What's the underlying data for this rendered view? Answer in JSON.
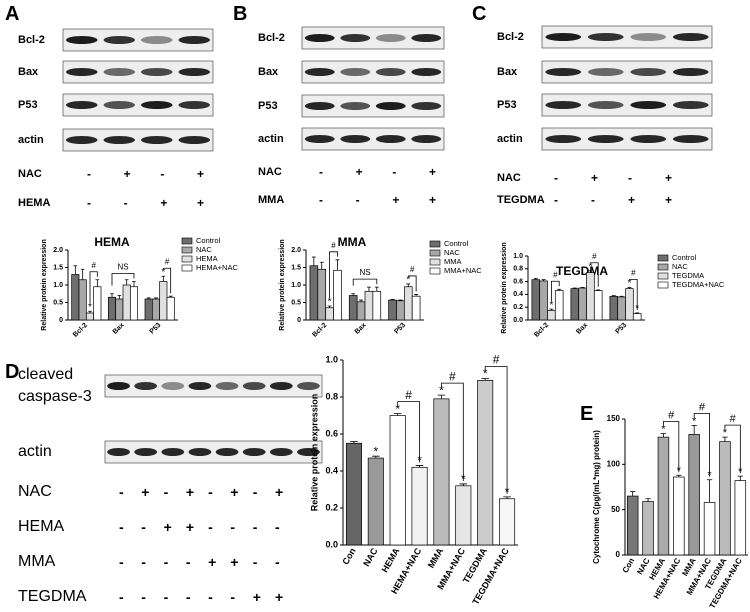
{
  "blots": [
    {
      "panel": "A",
      "bands": [
        "Bcl-2",
        "Bax",
        "P53",
        "actin"
      ],
      "treatments": [
        {
          "name": "NAC",
          "signs": [
            "-",
            "+",
            "-",
            "+"
          ]
        },
        {
          "name": "HEMA",
          "signs": [
            "-",
            "-",
            "+",
            "+"
          ]
        }
      ]
    },
    {
      "panel": "B",
      "bands": [
        "Bcl-2",
        "Bax",
        "P53",
        "actin"
      ],
      "treatments": [
        {
          "name": "NAC",
          "signs": [
            "-",
            "+",
            "-",
            "+"
          ]
        },
        {
          "name": "MMA",
          "signs": [
            "-",
            "-",
            "+",
            "+"
          ]
        }
      ]
    },
    {
      "panel": "C",
      "bands": [
        "Bcl-2",
        "Bax",
        "P53",
        "actin"
      ],
      "treatments": [
        {
          "name": "NAC",
          "signs": [
            "-",
            "+",
            "-",
            "+"
          ]
        },
        {
          "name": "TEGDMA",
          "signs": [
            "-",
            "-",
            "+",
            "+"
          ]
        }
      ]
    },
    {
      "panel": "D",
      "bands": [
        "cleaved caspase-3",
        "actin"
      ],
      "treatments": [
        {
          "name": "NAC",
          "signs": [
            "-",
            "+",
            "-",
            "+",
            "-",
            "+",
            "-",
            "+"
          ]
        },
        {
          "name": "HEMA",
          "signs": [
            "-",
            "-",
            "+",
            "+",
            "-",
            "-",
            "-",
            "-"
          ]
        },
        {
          "name": "MMA",
          "signs": [
            "-",
            "-",
            "-",
            "-",
            "+",
            "+",
            "-",
            "-"
          ]
        },
        {
          "name": "TEGDMA",
          "signs": [
            "-",
            "-",
            "-",
            "-",
            "-",
            "-",
            "+",
            "+"
          ]
        }
      ]
    },
    {
      "panel": "E"
    }
  ],
  "chart_data": [
    {
      "type": "grouped_bar",
      "title": "HEMA",
      "y_label": "Relative protein expression",
      "categories": [
        "Bcl-2",
        "Bax",
        "P53"
      ],
      "legend": "right",
      "series": [
        {
          "name": "Control",
          "color": "#6e6e6e",
          "values": [
            1.3,
            0.65,
            0.6
          ],
          "errors": [
            0.25,
            0.1,
            0.03
          ]
        },
        {
          "name": "NAC",
          "color": "#a8a8a8",
          "values": [
            1.15,
            0.6,
            0.6
          ],
          "errors": [
            0.3,
            0.1,
            0.03
          ]
        },
        {
          "name": "HEMA",
          "color": "#e0e0e0",
          "values": [
            0.2,
            1.0,
            1.1
          ],
          "errors": [
            0.05,
            0.15,
            0.15
          ],
          "markers": [
            "*",
            null,
            "*"
          ]
        },
        {
          "name": "HEMA+NAC",
          "color": "#ffffff",
          "values": [
            0.95,
            0.95,
            0.65
          ],
          "errors": [
            0.2,
            0.15,
            0.03
          ]
        }
      ],
      "ylim": [
        0,
        2
      ],
      "yticks": [
        0,
        0.5,
        {
          "value": 1,
          "label": "1.0"
        },
        1.5,
        {
          "value": 2,
          "label": "2.0"
        }
      ],
      "annotations": [
        {
          "text": "#",
          "category": "Bcl-2",
          "between": [
            "HEMA",
            "HEMA+NAC"
          ]
        },
        {
          "text": "NS",
          "category": "Bax",
          "between": [
            "Control",
            "HEMA+NAC"
          ]
        },
        {
          "text": "#",
          "category": "P53",
          "between": [
            "HEMA",
            "HEMA+NAC"
          ]
        }
      ]
    },
    {
      "type": "grouped_bar",
      "title": "MMA",
      "y_label": "Relative protein expression",
      "categories": [
        "Bcl-2",
        "Bax",
        "P53"
      ],
      "legend": "right",
      "series": [
        {
          "name": "Control",
          "color": "#6e6e6e",
          "values": [
            1.55,
            0.7,
            0.57
          ],
          "errors": [
            0.25,
            0.05,
            0.02
          ]
        },
        {
          "name": "NAC",
          "color": "#a8a8a8",
          "values": [
            1.45,
            0.52,
            0.55
          ],
          "errors": [
            0.2,
            0.05,
            0.02
          ]
        },
        {
          "name": "MMA",
          "color": "#e0e0e0",
          "values": [
            0.35,
            0.82,
            0.95
          ],
          "errors": [
            0.05,
            0.12,
            0.08
          ],
          "markers": [
            "*",
            null,
            "*"
          ]
        },
        {
          "name": "MMA+NAC",
          "color": "#ffffff",
          "values": [
            1.42,
            0.82,
            0.68
          ],
          "errors": [
            0.3,
            0.12,
            0.05
          ]
        }
      ],
      "ylim": [
        0,
        2
      ],
      "yticks": [
        0,
        0.5,
        {
          "value": 1,
          "label": "1.0"
        },
        1.5,
        {
          "value": 2,
          "label": "2.0"
        }
      ],
      "annotations": [
        {
          "text": "#",
          "category": "Bcl-2",
          "between": [
            "MMA",
            "MMA+NAC"
          ]
        },
        {
          "text": "NS",
          "category": "Bax",
          "between": [
            "Control",
            "MMA+NAC"
          ]
        },
        {
          "text": "#",
          "category": "P53",
          "between": [
            "MMA",
            "MMA+NAC"
          ]
        }
      ]
    },
    {
      "type": "grouped_bar",
      "title": "TEGDMA",
      "y_label": "Relative protein expression",
      "categories": [
        "Bcl-2",
        "Bax",
        "P53"
      ],
      "legend": "right",
      "series": [
        {
          "name": "Control",
          "color": "#6e6e6e",
          "values": [
            0.63,
            0.49,
            0.37
          ],
          "errors": [
            0.02,
            0.01,
            0.01
          ]
        },
        {
          "name": "NAC",
          "color": "#a8a8a8",
          "values": [
            0.61,
            0.5,
            0.36
          ],
          "errors": [
            0.02,
            0.01,
            0.01
          ]
        },
        {
          "name": "TEGDMA",
          "color": "#e0e0e0",
          "values": [
            0.15,
            0.74,
            0.49
          ],
          "errors": [
            0.02,
            0.03,
            0.02
          ],
          "markers": [
            "*",
            "*",
            "*"
          ]
        },
        {
          "name": "TEGDMA+NAC",
          "color": "#ffffff",
          "values": [
            0.46,
            0.46,
            0.1
          ],
          "errors": [
            0.02,
            0.01,
            0.01
          ],
          "markers": [
            null,
            null,
            "*"
          ]
        }
      ],
      "ylim": [
        0,
        1
      ],
      "yticks": [
        {
          "value": 0,
          "label": "0.0"
        },
        0.2,
        0.4,
        0.6,
        0.8,
        {
          "value": 1,
          "label": "1.0"
        }
      ],
      "annotations": [
        {
          "text": "#",
          "category": "Bcl-2",
          "between": [
            "TEGDMA",
            "TEGDMA+NAC"
          ]
        },
        {
          "text": "#",
          "category": "Bax",
          "between": [
            "TEGDMA",
            "TEGDMA+NAC"
          ]
        },
        {
          "text": "#",
          "category": "P53",
          "between": [
            "TEGDMA",
            "TEGDMA+NAC"
          ]
        }
      ]
    },
    {
      "type": "bar",
      "y_label": "Relative protein expression",
      "categories": [
        "Con",
        "NAC",
        "HEMA",
        "HEMA+NAC",
        "MMA",
        "MMA+NAC",
        "TEGDMA",
        "TEGDMA+NAC"
      ],
      "colors": [
        "#666666",
        "#999999",
        "#ffffff",
        "#f2f2f2",
        "#bbbbbb",
        "#e6e6e6",
        "#cccccc",
        "#f7f7f7"
      ],
      "values": [
        0.55,
        0.47,
        0.7,
        0.42,
        0.79,
        0.32,
        0.89,
        0.25
      ],
      "errors": [
        0.01,
        0.01,
        0.01,
        0.01,
        0.02,
        0.01,
        0.01,
        0.01
      ],
      "markers": [
        null,
        "*",
        "*",
        "*",
        "*",
        "*",
        "*",
        "*"
      ],
      "ylim": [
        0,
        1
      ],
      "yticks": [
        {
          "value": 0,
          "label": "0.0"
        },
        0.2,
        0.4,
        0.6,
        0.8,
        {
          "value": 1,
          "label": "1.0"
        }
      ],
      "annotations": [
        {
          "text": "#",
          "between": [
            "HEMA",
            "HEMA+NAC"
          ]
        },
        {
          "text": "#",
          "between": [
            "MMA",
            "MMA+NAC"
          ]
        },
        {
          "text": "#",
          "between": [
            "TEGDMA",
            "TEGDMA+NAC"
          ]
        }
      ]
    },
    {
      "type": "bar",
      "y_label": "Cytochrome C(pg/(mL*mg) protein)",
      "categories": [
        "Con",
        "NAC",
        "HEMA",
        "HEMA+NAC",
        "MMA",
        "MMA+NAC",
        "TEGDMA",
        "TEGDMA+NAC"
      ],
      "colors": [
        "#777777",
        "#bbbbbb",
        "#aaaaaa",
        "#ffffff",
        "#999999",
        "#ffffff",
        "#bbbbbb",
        "#ffffff"
      ],
      "values": [
        65,
        59,
        130,
        86,
        133,
        58,
        125,
        82
      ],
      "errors": [
        5,
        3,
        4,
        2,
        10,
        25,
        5,
        5
      ],
      "markers": [
        null,
        null,
        "*",
        "*",
        "*",
        "*",
        "*",
        "*"
      ],
      "ylim": [
        0,
        150
      ],
      "yticks": [
        0,
        50,
        100,
        150
      ],
      "annotations": [
        {
          "text": "#",
          "between": [
            "HEMA",
            "HEMA+NAC"
          ]
        },
        {
          "text": "#",
          "between": [
            "MMA",
            "MMA+NAC"
          ]
        },
        {
          "text": "#",
          "between": [
            "TEGDMA",
            "TEGDMA+NAC"
          ]
        }
      ]
    }
  ]
}
